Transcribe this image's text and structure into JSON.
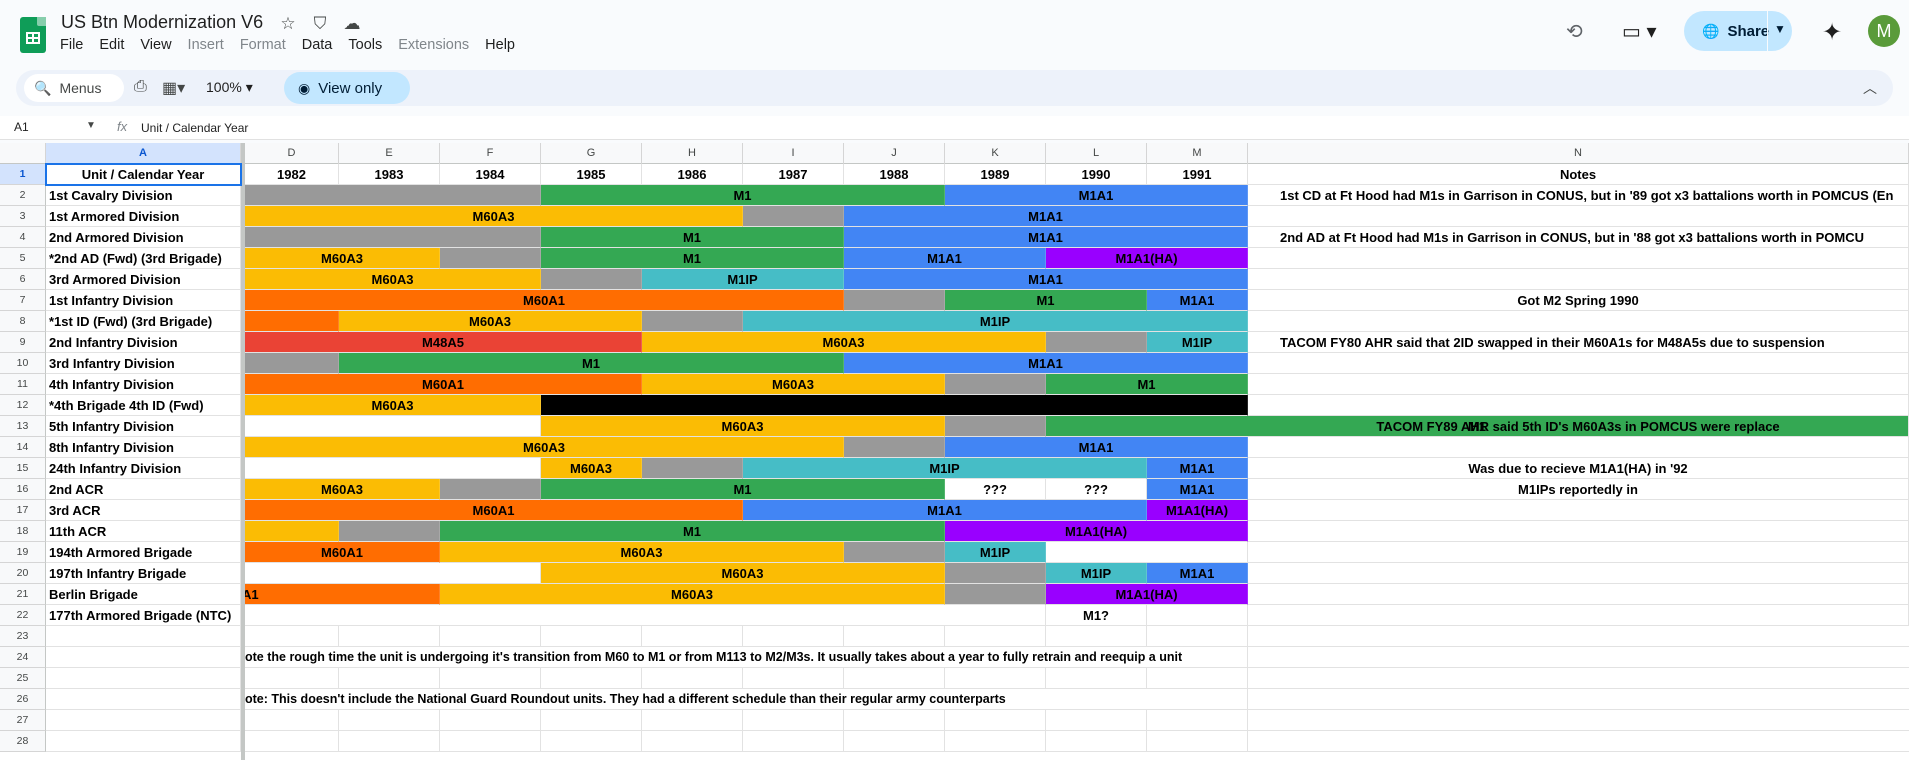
{
  "doc": {
    "title": "US Btn Modernization V6"
  },
  "menu": [
    "File",
    "Edit",
    "View",
    "Insert",
    "Format",
    "Data",
    "Tools",
    "Extensions",
    "Help"
  ],
  "menu_disabled": [
    "Insert",
    "Format",
    "Extensions"
  ],
  "header_actions": {
    "share_label": "Share",
    "avatar_letter": "M"
  },
  "toolbar": {
    "menus_label": "Menus",
    "zoom": "100%",
    "view_only_label": "View only"
  },
  "formula_bar": {
    "cell_ref": "A1",
    "fx": "fx",
    "content": "Unit / Calendar Year"
  },
  "colors": {
    "gray": "#999999",
    "green": "#34a853",
    "blue": "#4285f4",
    "orange": "#ff6d01",
    "yellow": "#fbbc04",
    "teal": "#46bdc6",
    "red": "#ea4335",
    "purple": "#9900ff",
    "black": "#000000",
    "white": "#ffffff"
  },
  "columns": [
    "A",
    "D",
    "E",
    "F",
    "G",
    "H",
    "I",
    "J",
    "K",
    "L",
    "M",
    "N"
  ],
  "header_row": [
    "Unit / Calendar Year",
    "1982",
    "1983",
    "1984",
    "1985",
    "1986",
    "1987",
    "1988",
    "1989",
    "1990",
    "1991",
    "Notes"
  ],
  "rows": [
    {
      "num": "2",
      "unit": "1st Cavalry Division",
      "bars": [
        [
          "gray",
          3,
          ""
        ],
        [
          "green",
          4,
          "M1"
        ],
        [
          "blue",
          3,
          "M1A1"
        ]
      ],
      "note": "1st CD at Ft Hood had M1s in Garrison in CONUS, but in '89 got x3 battalions worth in POMCUS (En"
    },
    {
      "num": "3",
      "unit": "1st Armored Division",
      "bars": [
        [
          "yellow",
          5,
          "M60A3"
        ],
        [
          "gray",
          1,
          ""
        ],
        [
          "blue",
          4,
          "M1A1"
        ]
      ],
      "note": ""
    },
    {
      "num": "4",
      "unit": "2nd Armored Division",
      "bars": [
        [
          "gray",
          3,
          ""
        ],
        [
          "green",
          3,
          "M1"
        ],
        [
          "blue",
          4,
          "M1A1"
        ]
      ],
      "note": "2nd AD at Ft Hood had M1s in Garrison in CONUS, but in '88 got x3 battalions worth in POMCU"
    },
    {
      "num": "5",
      "unit": "*2nd AD (Fwd) (3rd Brigade)",
      "bars": [
        [
          "yellow",
          2,
          "M60A3"
        ],
        [
          "gray",
          1,
          ""
        ],
        [
          "green",
          3,
          "M1"
        ],
        [
          "blue",
          2,
          "M1A1"
        ],
        [
          "purple",
          2,
          "M1A1(HA)"
        ]
      ],
      "note": ""
    },
    {
      "num": "6",
      "unit": "3rd Armored Division",
      "bars": [
        [
          "yellow",
          3,
          "M60A3"
        ],
        [
          "gray",
          1,
          ""
        ],
        [
          "teal",
          2,
          "M1IP"
        ],
        [
          "blue",
          4,
          "M1A1"
        ]
      ],
      "note": ""
    },
    {
      "num": "7",
      "unit": "1st Infantry Division",
      "bars": [
        [
          "orange",
          6,
          "M60A1"
        ],
        [
          "gray",
          1,
          ""
        ],
        [
          "green",
          2,
          "M1"
        ],
        [
          "blue",
          1,
          "M1A1"
        ]
      ],
      "note": "Got M2 Spring 1990"
    },
    {
      "num": "8",
      "unit": "*1st ID (Fwd) (3rd Brigade)",
      "bars": [
        [
          "orange",
          1,
          ""
        ],
        [
          "yellow",
          3,
          "M60A3"
        ],
        [
          "gray",
          1,
          ""
        ],
        [
          "teal",
          5,
          "M1IP"
        ]
      ],
      "note": ""
    },
    {
      "num": "9",
      "unit": "2nd Infantry Division",
      "bars": [
        [
          "red",
          4,
          "M48A5"
        ],
        [
          "yellow",
          4,
          "M60A3"
        ],
        [
          "gray",
          1,
          ""
        ],
        [
          "teal",
          1,
          "M1IP"
        ]
      ],
      "note": "TACOM FY80 AHR said that 2ID swapped in their M60A1s for M48A5s due to suspension"
    },
    {
      "num": "10",
      "unit": "3rd Infantry Division",
      "bars": [
        [
          "gray",
          1,
          ""
        ],
        [
          "green",
          5,
          "M1"
        ],
        [
          "blue",
          4,
          "M1A1"
        ]
      ],
      "note": ""
    },
    {
      "num": "11",
      "unit": "4th Infantry Division",
      "bars": [
        [
          "orange",
          4,
          "M60A1"
        ],
        [
          "yellow",
          3,
          "M60A3"
        ],
        [
          "gray",
          1,
          ""
        ],
        [
          "green",
          2,
          "M1"
        ]
      ],
      "note": ""
    },
    {
      "num": "12",
      "unit": "*4th Brigade 4th ID (Fwd)",
      "bars": [
        [
          "yellow",
          3,
          "M60A3"
        ],
        [
          "black",
          7,
          ""
        ]
      ],
      "note": ""
    },
    {
      "num": "13",
      "unit": "5th Infantry Division",
      "bars": [
        [
          "white",
          3,
          ""
        ],
        [
          "yellow",
          4,
          "M60A3"
        ],
        [
          "gray",
          1,
          ""
        ],
        [
          "green",
          3,
          "M1"
        ]
      ],
      "note": "TACOM FY89 AHR said 5th ID's M60A3s in POMCUS were replace"
    },
    {
      "num": "14",
      "unit": "8th Infantry Division",
      "bars": [
        [
          "yellow",
          6,
          "M60A3"
        ],
        [
          "gray",
          1,
          ""
        ],
        [
          "blue",
          3,
          "M1A1"
        ]
      ],
      "note": ""
    },
    {
      "num": "15",
      "unit": "24th Infantry Division",
      "bars": [
        [
          "white",
          3,
          ""
        ],
        [
          "yellow",
          1,
          "M60A3"
        ],
        [
          "gray",
          1,
          ""
        ],
        [
          "teal",
          4,
          "M1IP"
        ],
        [
          "blue",
          1,
          "M1A1"
        ]
      ],
      "note": "Was due to recieve M1A1(HA) in '92"
    },
    {
      "num": "16",
      "unit": "2nd ACR",
      "bars": [
        [
          "yellow",
          2,
          "M60A3"
        ],
        [
          "gray",
          1,
          ""
        ],
        [
          "green",
          4,
          "M1"
        ],
        [
          "white",
          1,
          "???"
        ],
        [
          "white",
          1,
          "???"
        ],
        [
          "blue",
          1,
          "M1A1"
        ]
      ],
      "note": "M1IPs reportedly in"
    },
    {
      "num": "17",
      "unit": "3rd ACR",
      "bars": [
        [
          "orange",
          5,
          "M60A1"
        ],
        [
          "blue",
          4,
          "M1A1"
        ],
        [
          "purple",
          1,
          "M1A1(HA)"
        ]
      ],
      "note": ""
    },
    {
      "num": "18",
      "unit": "11th ACR",
      "bars": [
        [
          "yellow",
          1,
          ""
        ],
        [
          "gray",
          1,
          ""
        ],
        [
          "green",
          5,
          "M1"
        ],
        [
          "purple",
          3,
          "M1A1(HA)"
        ]
      ],
      "note": ""
    },
    {
      "num": "19",
      "unit": "194th Armored Brigade",
      "bars": [
        [
          "orange",
          2,
          "M60A1"
        ],
        [
          "yellow",
          4,
          "M60A3"
        ],
        [
          "gray",
          1,
          ""
        ],
        [
          "teal",
          1,
          "M1IP"
        ],
        [
          "white",
          2,
          ""
        ]
      ],
      "note": ""
    },
    {
      "num": "20",
      "unit": "197th Infantry Brigade",
      "bars": [
        [
          "white",
          3,
          ""
        ],
        [
          "yellow",
          4,
          "M60A3"
        ],
        [
          "gray",
          1,
          ""
        ],
        [
          "teal",
          1,
          "M1IP"
        ],
        [
          "blue",
          1,
          "M1A1"
        ]
      ],
      "note": ""
    },
    {
      "num": "21",
      "unit": "Berlin Brigade",
      "bars": [
        [
          "orange",
          2,
          "A1"
        ],
        [
          "yellow",
          5,
          "M60A3"
        ],
        [
          "gray",
          1,
          ""
        ],
        [
          "purple",
          2,
          "M1A1(HA)"
        ]
      ],
      "note": ""
    },
    {
      "num": "22",
      "unit": "177th Armored Brigade (NTC)",
      "bars": [
        [
          "white",
          8,
          ""
        ],
        [
          "white",
          1,
          "M1?"
        ],
        [
          "white",
          1,
          ""
        ]
      ],
      "note": ""
    }
  ],
  "extra_rows": [
    "23",
    "24",
    "25",
    "26",
    "27",
    "28"
  ],
  "footnote_1": "ote the rough time the unit is undergoing it's transition from M60 to M1 or from M113 to M2/M3s. It usually takes about a year to fully retrain and reequip a unit",
  "footnote_2": "ote: This doesn't include the National Guard Roundout units. They had a different schedule than their regular army counterparts"
}
